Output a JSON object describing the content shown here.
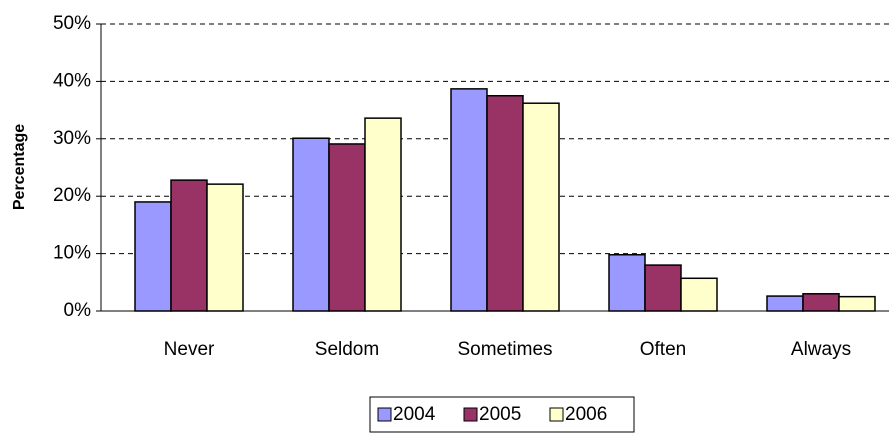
{
  "chart_data": {
    "type": "bar",
    "y_axis_label": "Percentage",
    "categories": [
      "Never",
      "Seldom",
      "Sometimes",
      "Often",
      "Always"
    ],
    "series": [
      {
        "name": "2004",
        "color": "#9999ff",
        "values": [
          19.0,
          30.1,
          38.7,
          9.8,
          2.6
        ]
      },
      {
        "name": "2005",
        "color": "#993366",
        "values": [
          22.8,
          29.1,
          37.5,
          8.0,
          3.0
        ]
      },
      {
        "name": "2006",
        "color": "#ffffcc",
        "values": [
          22.1,
          33.6,
          36.2,
          5.7,
          2.5
        ]
      }
    ],
    "ylim": [
      0,
      50
    ],
    "yticks": [
      {
        "value": 0,
        "label": "0%"
      },
      {
        "value": 10,
        "label": "10%"
      },
      {
        "value": 20,
        "label": "20%"
      },
      {
        "value": 30,
        "label": "30%"
      },
      {
        "value": 40,
        "label": "40%"
      },
      {
        "value": 50,
        "label": "50%"
      }
    ],
    "grid": true,
    "legend": "bottom"
  }
}
